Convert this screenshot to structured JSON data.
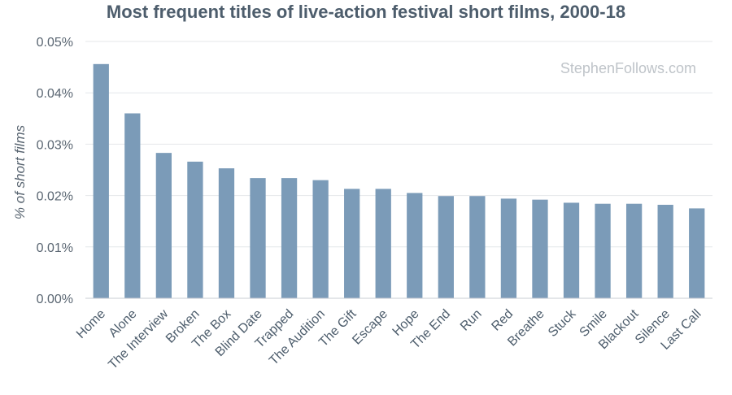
{
  "chart_data": {
    "type": "bar",
    "title": "Most frequent titles of live-action festival short films, 2000-18",
    "ylabel": "% of short films",
    "xlabel": "",
    "categories": [
      "Home",
      "Alone",
      "The Interview",
      "Broken",
      "The Box",
      "Blind Date",
      "Trapped",
      "The Audition",
      "The Gift",
      "Escape",
      "Hope",
      "The End",
      "Run",
      "Red",
      "Breathe",
      "Stuck",
      "Smile",
      "Blackout",
      "Silence",
      "Last Call"
    ],
    "values": [
      0.0456,
      0.036,
      0.0283,
      0.0266,
      0.0253,
      0.0234,
      0.0234,
      0.023,
      0.0213,
      0.0213,
      0.0205,
      0.0199,
      0.0199,
      0.0194,
      0.0192,
      0.0186,
      0.0184,
      0.0184,
      0.0182,
      0.0175
    ],
    "ylim": [
      0,
      0.05
    ],
    "yticks": [
      "0.00%",
      "0.01%",
      "0.02%",
      "0.03%",
      "0.04%",
      "0.05%"
    ],
    "ytick_values": [
      0,
      0.01,
      0.02,
      0.03,
      0.04,
      0.05
    ],
    "grid": true,
    "legend": "none",
    "bar_color": "#7b9bb8",
    "watermark": "StephenFollows.com"
  }
}
